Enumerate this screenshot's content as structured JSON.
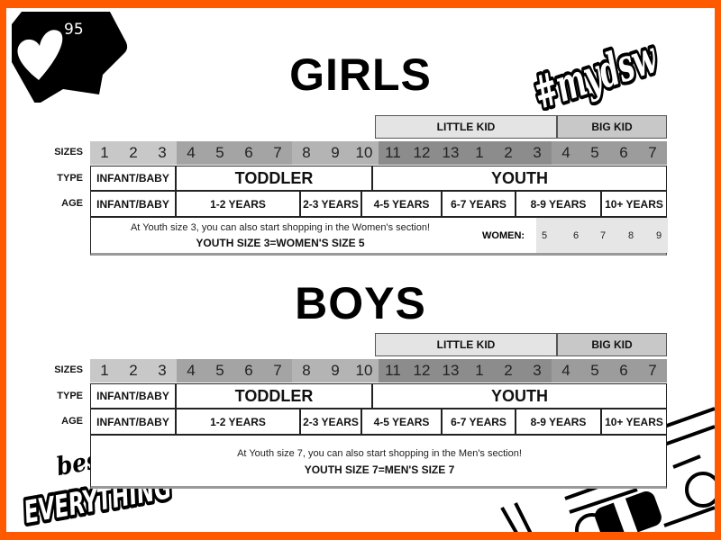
{
  "colors": {
    "border": "#ff5a00",
    "sizes_infant": "#c8c8c8",
    "sizes_toddler": "#a4a4a4",
    "sizes_toddler_light": "#b4b4b4",
    "sizes_youth": "#8c8c8c",
    "sizes_youth_light": "#9c9c9c"
  },
  "decor": {
    "likes_badge": {
      "icon": "heart-icon",
      "count": "95"
    },
    "hashtag": "#mydsw",
    "logo": {
      "line1": "best of",
      "line2": "EVERYTHING"
    },
    "cassette": "cassette-tape-illustration"
  },
  "row_labels": {
    "sizes": "SIZES",
    "type": "TYPE",
    "age": "AGE"
  },
  "groups": {
    "little_kid": "LITTLE KID",
    "big_kid": "BIG KID"
  },
  "sizes": [
    "1",
    "2",
    "3",
    "4",
    "5",
    "6",
    "7",
    "8",
    "9",
    "10",
    "11",
    "12",
    "13",
    "1",
    "2",
    "3",
    "4",
    "5",
    "6",
    "7"
  ],
  "types": [
    "INFANT/BABY",
    "TODDLER",
    "YOUTH"
  ],
  "ages": [
    "INFANT/BABY",
    "1-2 YEARS",
    "2-3 YEARS",
    "4-5 YEARS",
    "6-7 YEARS",
    "8-9 YEARS",
    "10+ YEARS"
  ],
  "girls": {
    "title": "GIRLS",
    "note": "At Youth size 3, you can also start shopping in the Women's section!",
    "note_bold": "YOUTH SIZE 3=WOMEN'S SIZE 5",
    "women_label": "WOMEN:",
    "women_sizes": [
      "5",
      "6",
      "7",
      "8",
      "9"
    ]
  },
  "boys": {
    "title": "BOYS",
    "note": "At Youth size 7, you can also start shopping in the Men's section!",
    "note_bold": "YOUTH SIZE 7=MEN'S SIZE 7"
  }
}
